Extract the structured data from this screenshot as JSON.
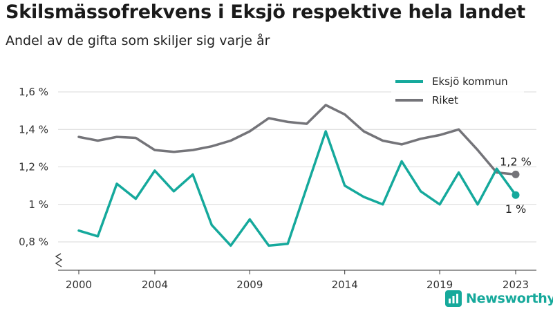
{
  "title": "Skilsmässofrekvens i Eksjö respektive hela landet",
  "subtitle": "Andel av de gifta som skiljer sig varje år",
  "brand": {
    "name": "Newsworthy",
    "icon": "newsworthy-logo-icon",
    "color": "#16a99b"
  },
  "chart_data": {
    "type": "line",
    "x": [
      2000,
      2001,
      2002,
      2003,
      2004,
      2005,
      2006,
      2007,
      2008,
      2009,
      2010,
      2011,
      2012,
      2013,
      2014,
      2015,
      2016,
      2017,
      2018,
      2019,
      2020,
      2021,
      2022,
      2023
    ],
    "series": [
      {
        "name": "Eksjö kommun",
        "color": "#15a99c",
        "values": [
          0.86,
          0.83,
          1.11,
          1.03,
          1.18,
          1.07,
          1.16,
          0.89,
          0.78,
          0.92,
          0.78,
          0.79,
          1.09,
          1.39,
          1.1,
          1.04,
          1.0,
          1.23,
          1.07,
          1.0,
          1.17,
          1.0,
          1.19,
          1.05
        ],
        "end_label": "1 %"
      },
      {
        "name": "Riket",
        "color": "#747479",
        "values": [
          1.36,
          1.34,
          1.36,
          1.355,
          1.29,
          1.28,
          1.29,
          1.31,
          1.34,
          1.39,
          1.46,
          1.44,
          1.43,
          1.53,
          1.48,
          1.39,
          1.34,
          1.32,
          1.35,
          1.37,
          1.4,
          1.29,
          1.17,
          1.16
        ],
        "end_label": "1,2 %"
      }
    ],
    "y_ticks": [
      {
        "value": 0.8,
        "label": "0,8 %"
      },
      {
        "value": 1.0,
        "label": "1 %"
      },
      {
        "value": 1.2,
        "label": "1,2 %"
      },
      {
        "value": 1.4,
        "label": "1,4 %"
      },
      {
        "value": 1.6,
        "label": "1,6 %"
      }
    ],
    "x_ticks": [
      2000,
      2004,
      2009,
      2014,
      2019,
      2023
    ],
    "ylim": [
      0.8,
      1.6
    ],
    "axis_break": true,
    "grid": true,
    "legend_position": "top-right"
  }
}
